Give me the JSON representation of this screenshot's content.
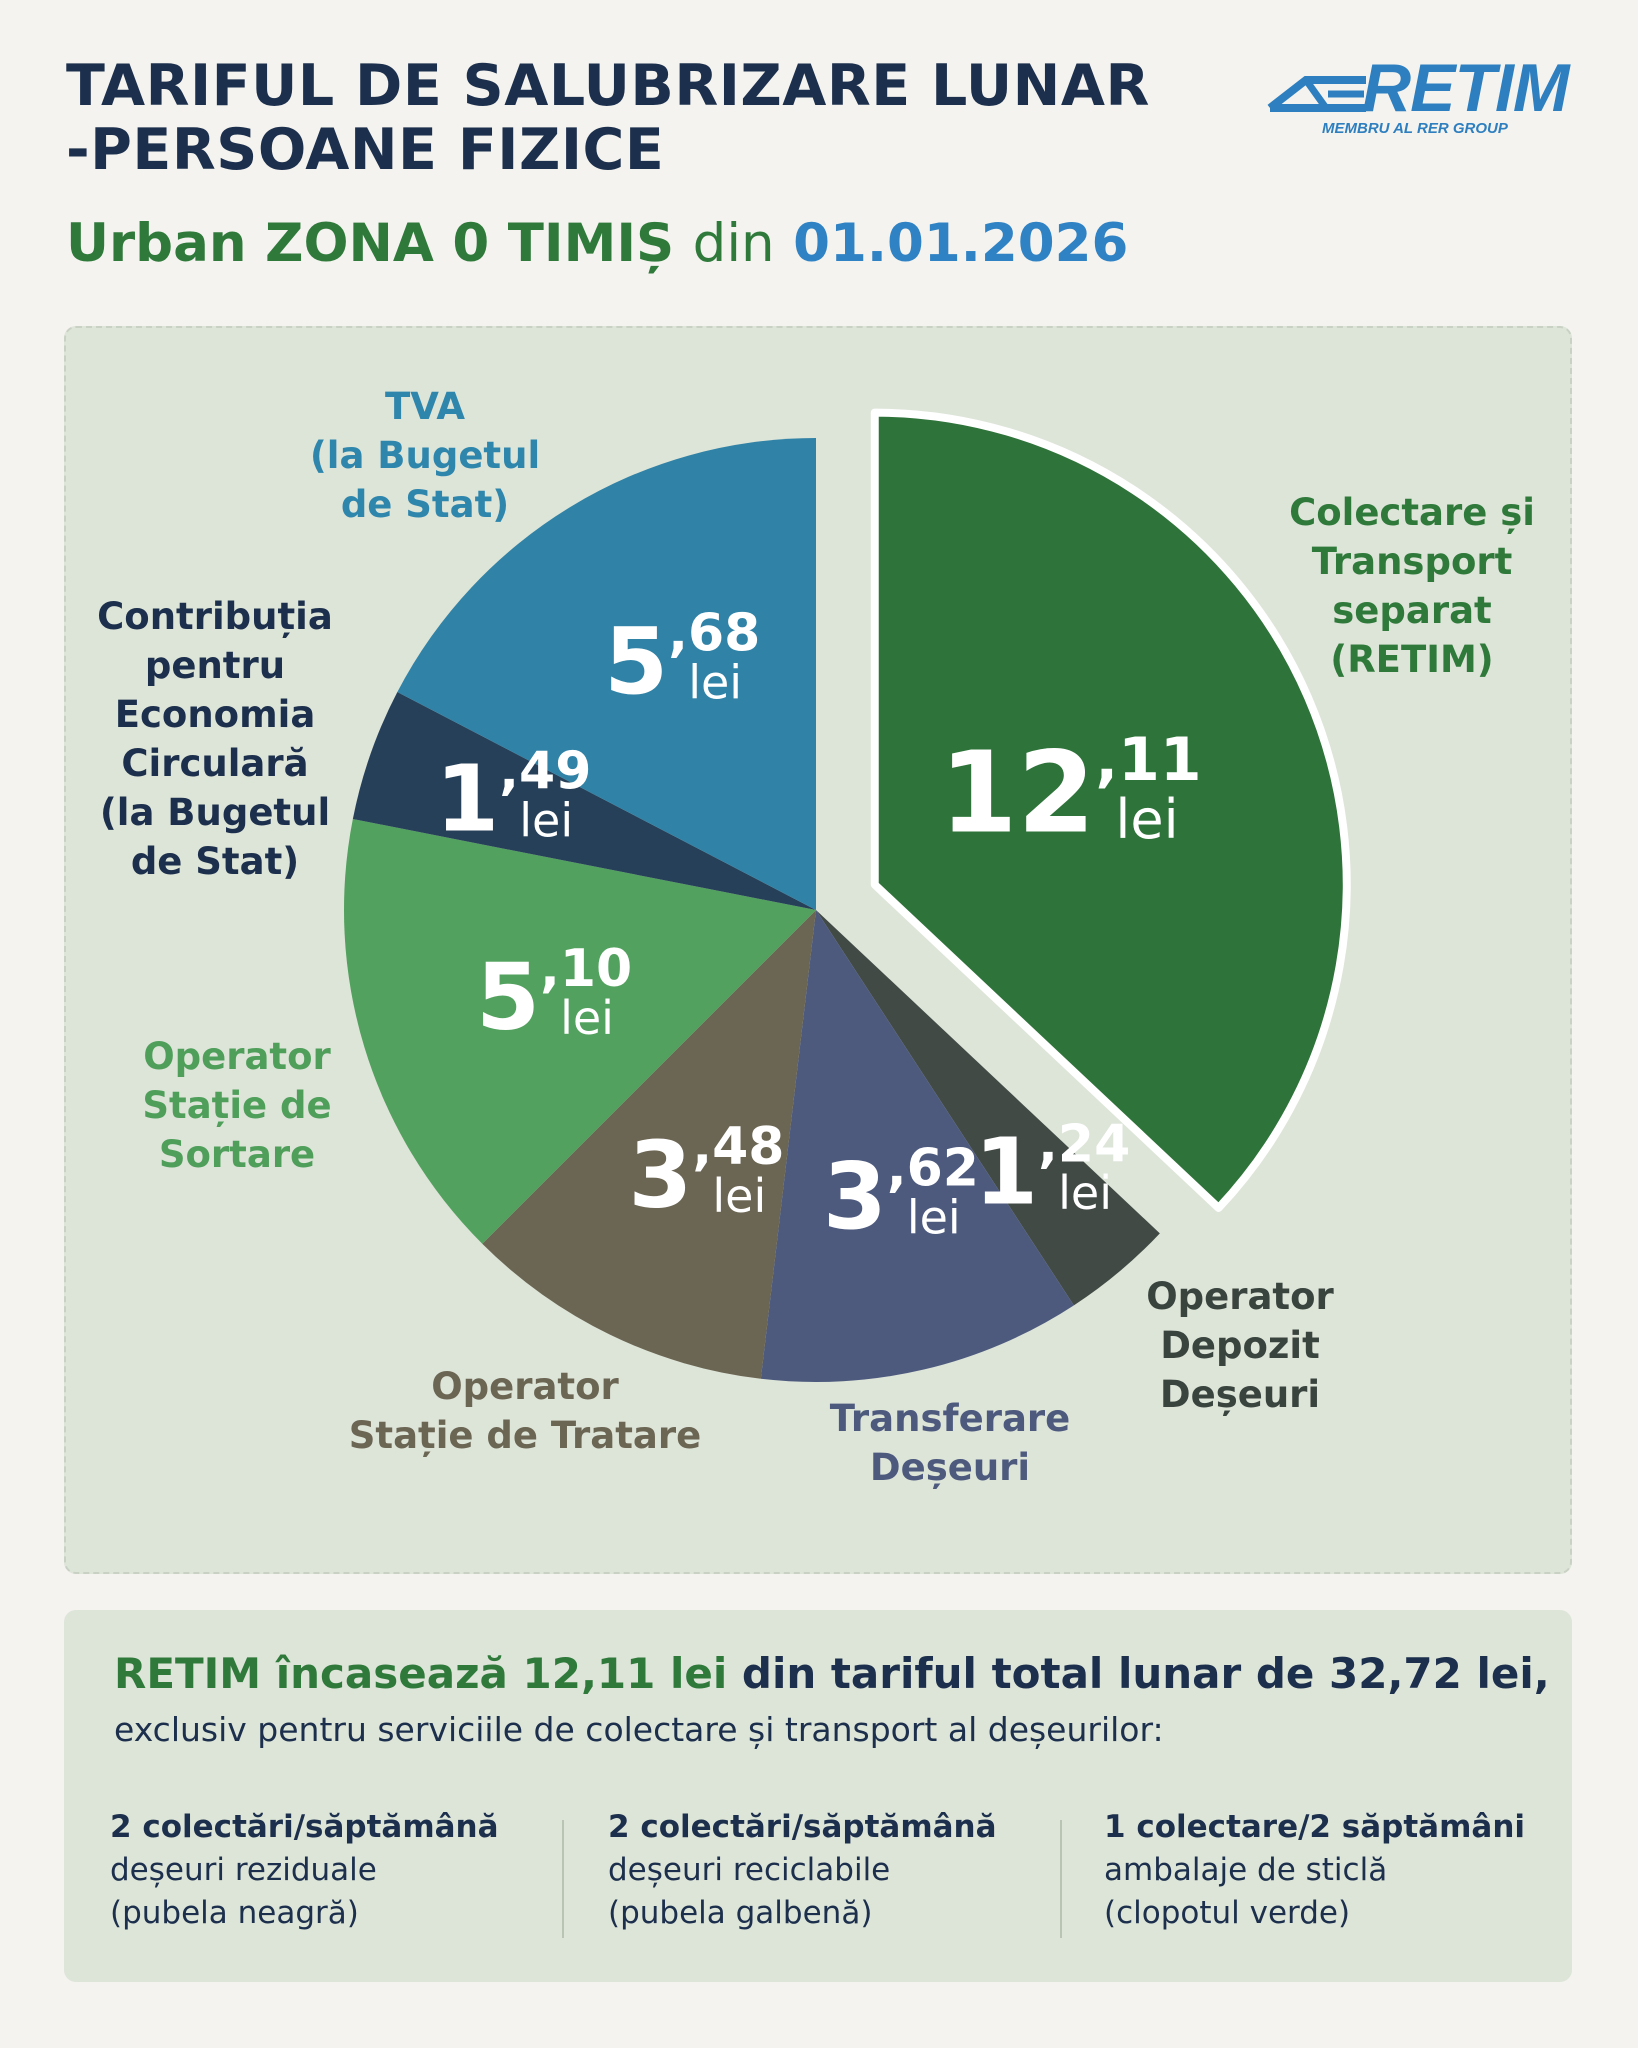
{
  "header": {
    "title_line1": "TARIFUL DE SALUBRIZARE LUNAR",
    "title_line2": "-PERSOANE FIZICE",
    "subtitle_zone": "Urban ZONA 0 TIMIȘ",
    "subtitle_din": "din",
    "subtitle_date": "01.01.2026"
  },
  "logo": {
    "wordmark": "RETIM",
    "tagline": "MEMBRU AL RER GROUP"
  },
  "colors": {
    "navy": "#1c2f4c",
    "green_dark": "#2f7a3b",
    "blue": "#2f82c4",
    "slice_retim": "#2e7339",
    "slice_depozit": "#414a45",
    "slice_transfer": "#4d5a7e",
    "slice_tratare": "#6b6553",
    "slice_sortare": "#52a15e",
    "slice_contributie": "#27405a",
    "slice_tva": "#3082a6"
  },
  "chart_data": {
    "type": "pie",
    "title": "Urban ZONA 0 TIMIȘ din 01.01.2026",
    "unit": "lei",
    "total": 32.72,
    "exploded_slice": "Colectare și Transport separat (RETIM)",
    "slices": [
      {
        "name": "Colectare și Transport separat (RETIM)",
        "label": "Colectare și\nTransport\nseparat\n(RETIM)",
        "value": 12.11,
        "int": "12",
        "dec": ",11",
        "color": "#2e7339",
        "label_color": "#2f7a3b"
      },
      {
        "name": "Operator Depozit Deșeuri",
        "label": "Operator\nDepozit\nDeșeuri",
        "value": 1.24,
        "int": "1",
        "dec": ",24",
        "color": "#414a45",
        "label_color": "#3a443f"
      },
      {
        "name": "Transferare Deșeuri",
        "label": "Transferare\nDeșeuri",
        "value": 3.62,
        "int": "3",
        "dec": ",62",
        "color": "#4d5a7e",
        "label_color": "#4d5a7e"
      },
      {
        "name": "Operator Stație de Tratare",
        "label": "Operator\nStație de Tratare",
        "value": 3.48,
        "int": "3",
        "dec": ",48",
        "color": "#6b6553",
        "label_color": "#6b6553"
      },
      {
        "name": "Operator Stație de Sortare",
        "label": "Operator\nStație de\nSortare",
        "value": 5.1,
        "int": "5",
        "dec": ",10",
        "color": "#52a15e",
        "label_color": "#4f9f5b"
      },
      {
        "name": "Contribuția pentru Economia Circulară (la Bugetul de Stat)",
        "label": "Contribuția\npentru\nEconomia\nCirculară\n(la Bugetul\nde Stat)",
        "value": 1.49,
        "int": "1",
        "dec": ",49",
        "color": "#27405a",
        "label_color": "#1c2f4c"
      },
      {
        "name": "TVA (la Bugetul de Stat)",
        "label": "TVA\n(la Bugetul\nde Stat)",
        "value": 5.68,
        "int": "5",
        "dec": ",68",
        "color": "#3082a6",
        "label_color": "#2f86ad"
      }
    ]
  },
  "summary": {
    "head_green": "RETIM încasează 12,11 lei",
    "head_rest": "din tariful total lunar de 32,72 lei,",
    "sub": "exclusiv pentru serviciile de colectare și transport al deșeurilor:",
    "columns": [
      {
        "head": "2 colectări/săptămână",
        "line1": "deșeuri reziduale",
        "line2": "(pubela neagră)"
      },
      {
        "head": "2 colectări/săptămână",
        "line1": "deșeuri reciclabile",
        "line2": "(pubela galbenă)"
      },
      {
        "head": "1 colectare/2 săptămâni",
        "line1": "ambalaje de sticlă",
        "line2": "(clopotul verde)"
      }
    ]
  }
}
